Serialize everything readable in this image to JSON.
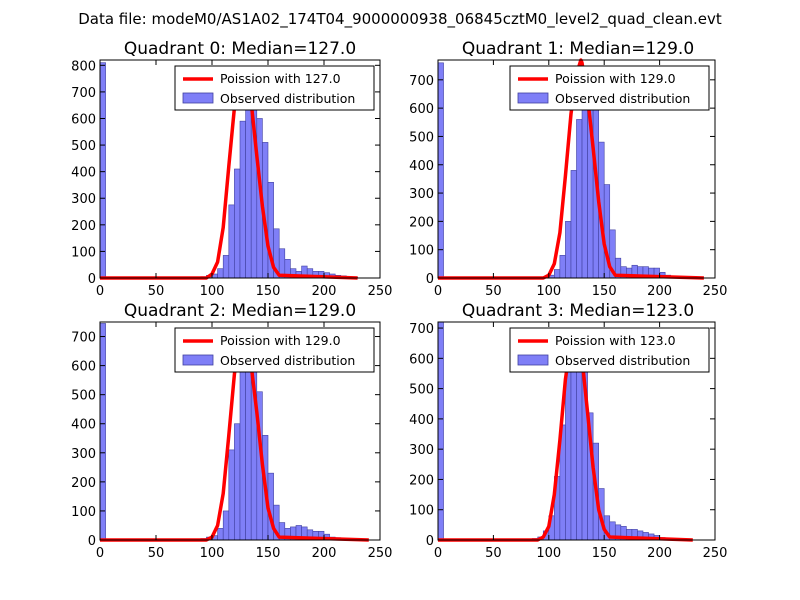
{
  "suptitle": "Data file: modeM0/AS1A02_174T04_9000000938_06845cztM0_level2_quad_clean.evt",
  "colors": {
    "poisson": "#ff0000",
    "bar_fill": "#7f7ff7",
    "bar_edge": "#4040a0"
  },
  "chart_data": [
    {
      "type": "bar",
      "title": "Quadrant 0: Median=127.0",
      "median": 127.0,
      "xlim": [
        0,
        250
      ],
      "ylim": [
        0,
        820
      ],
      "xticks": [
        "0",
        "50",
        "100",
        "150",
        "200",
        "250"
      ],
      "yticks": [
        "0",
        "100",
        "200",
        "300",
        "400",
        "500",
        "600",
        "700",
        "800"
      ],
      "bins": {
        "start": 0,
        "width": 5,
        "values": [
          810,
          0,
          0,
          0,
          0,
          0,
          0,
          0,
          0,
          0,
          0,
          0,
          0,
          0,
          0,
          0,
          0,
          0,
          5,
          10,
          15,
          35,
          85,
          275,
          410,
          590,
          700,
          740,
          600,
          510,
          360,
          185,
          110,
          70,
          35,
          25,
          45,
          35,
          25,
          25,
          20,
          15,
          10,
          8,
          5,
          3
        ]
      },
      "poisson": {
        "x": [
          0,
          95,
          100,
          105,
          110,
          115,
          120,
          125,
          127,
          130,
          135,
          140,
          145,
          150,
          155,
          160,
          230
        ],
        "y": [
          0,
          0,
          15,
          60,
          190,
          420,
          640,
          765,
          780,
          760,
          660,
          460,
          270,
          120,
          40,
          10,
          0
        ]
      },
      "legend": {
        "location": "upper-right",
        "items": [
          "Poission with 127.0",
          "Observed distribution"
        ]
      }
    },
    {
      "type": "bar",
      "title": "Quadrant 1: Median=129.0",
      "median": 129.0,
      "xlim": [
        0,
        250
      ],
      "ylim": [
        0,
        770
      ],
      "xticks": [
        "0",
        "50",
        "100",
        "150",
        "200",
        "250"
      ],
      "yticks": [
        "0",
        "100",
        "200",
        "300",
        "400",
        "500",
        "600",
        "700"
      ],
      "bins": {
        "start": 0,
        "width": 5,
        "values": [
          760,
          0,
          0,
          0,
          0,
          0,
          0,
          0,
          0,
          0,
          0,
          0,
          0,
          0,
          0,
          0,
          0,
          0,
          0,
          5,
          10,
          30,
          80,
          200,
          380,
          560,
          700,
          740,
          620,
          480,
          330,
          170,
          70,
          40,
          35,
          45,
          40,
          40,
          35,
          35,
          20,
          10,
          5,
          5,
          5,
          3
        ]
      },
      "poisson": {
        "x": [
          0,
          95,
          100,
          105,
          110,
          115,
          120,
          125,
          129,
          130,
          135,
          140,
          145,
          150,
          155,
          160,
          240
        ],
        "y": [
          0,
          0,
          10,
          50,
          160,
          360,
          580,
          720,
          770,
          760,
          640,
          460,
          270,
          120,
          40,
          10,
          0
        ]
      },
      "legend": {
        "location": "upper-right",
        "items": [
          "Poission with 129.0",
          "Observed distribution"
        ]
      }
    },
    {
      "type": "bar",
      "title": "Quadrant 2: Median=129.0",
      "median": 129.0,
      "xlim": [
        0,
        250
      ],
      "ylim": [
        0,
        750
      ],
      "xticks": [
        "0",
        "50",
        "100",
        "150",
        "200",
        "250"
      ],
      "yticks": [
        "0",
        "100",
        "200",
        "300",
        "400",
        "500",
        "600",
        "700"
      ],
      "bins": {
        "start": 0,
        "width": 5,
        "values": [
          745,
          0,
          0,
          0,
          0,
          0,
          0,
          0,
          0,
          0,
          0,
          0,
          0,
          0,
          0,
          0,
          0,
          0,
          5,
          10,
          15,
          40,
          100,
          310,
          400,
          590,
          700,
          710,
          510,
          360,
          230,
          120,
          60,
          40,
          45,
          50,
          45,
          35,
          30,
          30,
          20,
          10,
          8,
          5,
          5,
          5
        ]
      },
      "poisson": {
        "x": [
          0,
          95,
          100,
          105,
          110,
          115,
          120,
          125,
          129,
          130,
          135,
          140,
          145,
          150,
          155,
          160,
          240
        ],
        "y": [
          0,
          0,
          10,
          50,
          160,
          360,
          570,
          700,
          720,
          710,
          600,
          440,
          260,
          110,
          40,
          10,
          0
        ]
      },
      "legend": {
        "location": "upper-right",
        "items": [
          "Poission with 129.0",
          "Observed distribution"
        ]
      }
    },
    {
      "type": "bar",
      "title": "Quadrant 3: Median=123.0",
      "median": 123.0,
      "xlim": [
        0,
        250
      ],
      "ylim": [
        0,
        720
      ],
      "xticks": [
        "0",
        "50",
        "100",
        "150",
        "200",
        "250"
      ],
      "yticks": [
        "0",
        "100",
        "200",
        "300",
        "400",
        "500",
        "600",
        "700"
      ],
      "bins": {
        "start": 0,
        "width": 5,
        "values": [
          720,
          0,
          0,
          0,
          0,
          0,
          0,
          0,
          0,
          0,
          0,
          0,
          0,
          0,
          0,
          0,
          0,
          5,
          10,
          30,
          80,
          210,
          380,
          570,
          690,
          700,
          570,
          420,
          320,
          170,
          80,
          60,
          50,
          45,
          35,
          35,
          30,
          25,
          20,
          15,
          8,
          5,
          5,
          5
        ]
      },
      "poisson": {
        "x": [
          0,
          90,
          95,
          100,
          105,
          110,
          115,
          120,
          123,
          125,
          130,
          135,
          140,
          145,
          150,
          155,
          230
        ],
        "y": [
          0,
          0,
          10,
          45,
          150,
          330,
          530,
          660,
          690,
          680,
          600,
          420,
          240,
          100,
          35,
          10,
          0
        ]
      },
      "legend": {
        "location": "upper-right",
        "items": [
          "Poission with 123.0",
          "Observed distribution"
        ]
      }
    }
  ]
}
